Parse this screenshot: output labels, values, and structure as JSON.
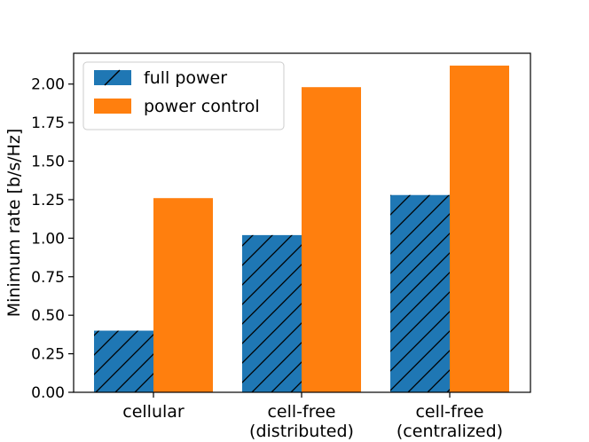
{
  "chart_data": {
    "type": "bar",
    "title": "",
    "xlabel": "",
    "ylabel": "Minimum rate [b/s/Hz]",
    "categories": [
      [
        "cellular"
      ],
      [
        "cell-free",
        "(distributed)"
      ],
      [
        "cell-free",
        "(centralized)"
      ]
    ],
    "series": [
      {
        "name": "full power",
        "values": [
          0.4,
          1.02,
          1.28
        ],
        "color": "#1f77b4",
        "hatch": "diagonal"
      },
      {
        "name": "power control",
        "values": [
          1.26,
          1.98,
          2.12
        ],
        "color": "#ff7f0e",
        "hatch": "none"
      }
    ],
    "ylim": [
      0,
      2.2
    ],
    "yticks": [
      "0.00",
      "0.25",
      "0.50",
      "0.75",
      "1.00",
      "1.25",
      "1.50",
      "1.75",
      "2.00"
    ],
    "grid": false,
    "legend_position": "top-left"
  }
}
